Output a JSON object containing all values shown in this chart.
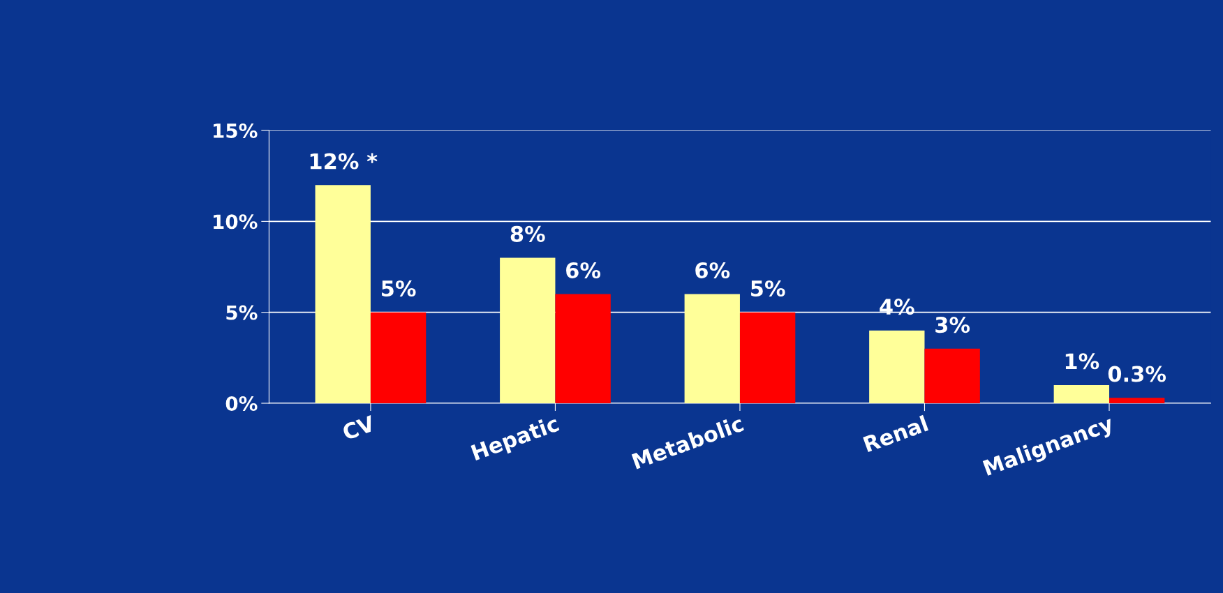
{
  "chart_data": {
    "type": "bar",
    "categories": [
      "CV",
      "Hepatic",
      "Metabolic",
      "Renal",
      "Malignancy"
    ],
    "series": [
      {
        "color": "#ffff99",
        "values": [
          12,
          8,
          6,
          4,
          1
        ],
        "value_labels": [
          "12% *",
          "8%",
          "6%",
          "4%",
          "1%"
        ]
      },
      {
        "color": "#ff0000",
        "values": [
          5,
          6,
          5,
          3,
          0.3
        ],
        "value_labels": [
          "5%",
          "6%",
          "5%",
          "3%",
          "0.3%"
        ]
      }
    ],
    "ylim": [
      0,
      15
    ],
    "yticks": [
      {
        "value": 0,
        "label": "0%"
      },
      {
        "value": 5,
        "label": "5%"
      },
      {
        "value": 10,
        "label": "10%"
      },
      {
        "value": 15,
        "label": "15%"
      }
    ],
    "grid": "y"
  }
}
